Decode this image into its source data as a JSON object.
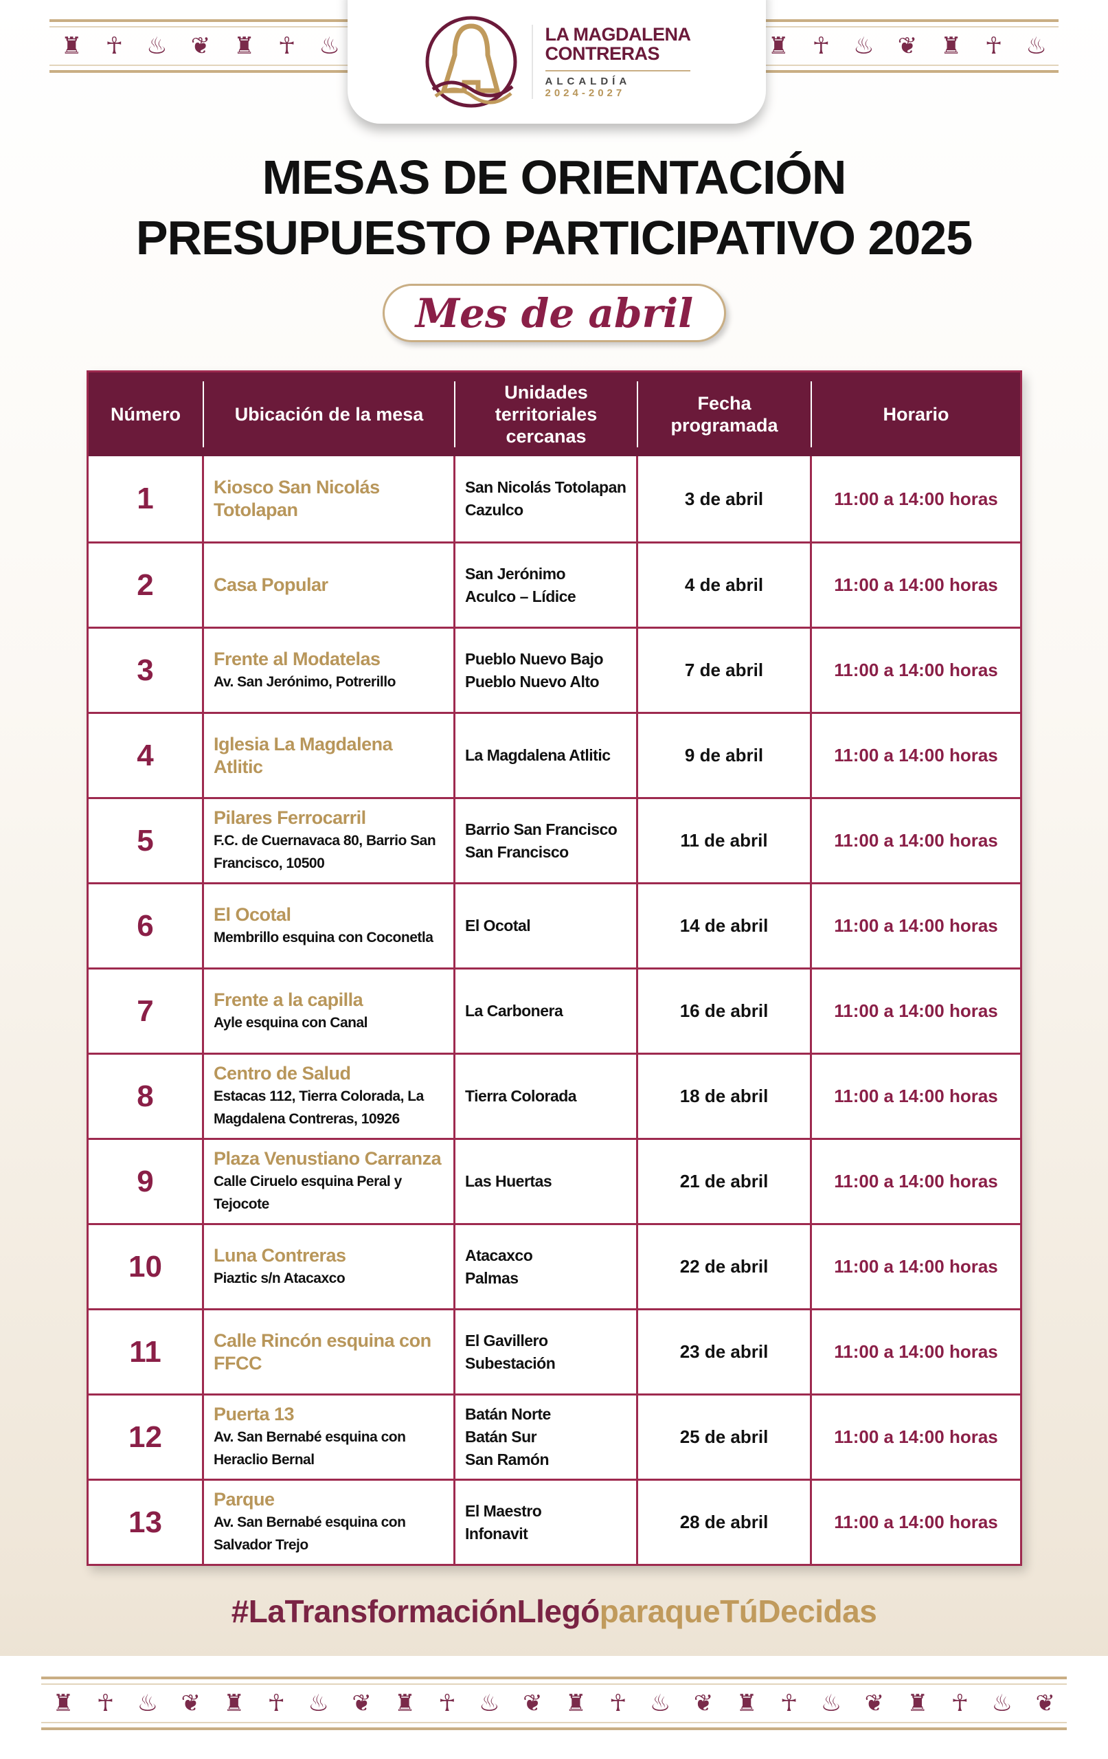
{
  "header": {
    "logo_line1": "LA MAGDALENA",
    "logo_line2": "CONTRERAS",
    "logo_sub": "ALCALDÍA",
    "logo_years": "2024-2027"
  },
  "title": {
    "line1": "MESAS DE ORIENTACIÓN",
    "line2": "PRESUPUESTO PARTICIPATIVO 2025"
  },
  "month_label": "Mes de abril",
  "colors": {
    "maroon": "#6b1a3a",
    "border": "#9e2a4f",
    "gold": "#b8965a"
  },
  "table": {
    "columns": [
      "Número",
      "Ubicación de la mesa",
      "Unidades territoriales cercanas",
      "Fecha programada",
      "Horario"
    ],
    "rows": [
      {
        "num": "1",
        "name": "Kiosco San Nicolás Totolapan",
        "addr": "",
        "units": "San Nicolás Totolapan\nCazulco",
        "date": "3 de abril",
        "hours": "11:00 a 14:00 horas"
      },
      {
        "num": "2",
        "name": "Casa Popular",
        "addr": "",
        "units": "San Jerónimo\nAculco – Lídice",
        "date": "4 de abril",
        "hours": "11:00 a 14:00 horas"
      },
      {
        "num": "3",
        "name": "Frente al Modatelas",
        "addr": "Av. San Jerónimo, Potrerillo",
        "units": "Pueblo Nuevo Bajo\nPueblo Nuevo Alto",
        "date": "7 de abril",
        "hours": "11:00 a 14:00 horas"
      },
      {
        "num": "4",
        "name": "Iglesia La Magdalena Atlitic",
        "addr": "",
        "units": "La Magdalena Atlitic",
        "date": "9 de abril",
        "hours": "11:00 a 14:00 horas"
      },
      {
        "num": "5",
        "name": "Pilares Ferrocarril",
        "addr": "F.C. de Cuernavaca 80, Barrio San Francisco, 10500",
        "units": "Barrio San Francisco\nSan Francisco",
        "date": "11 de abril",
        "hours": "11:00 a 14:00 horas"
      },
      {
        "num": "6",
        "name": "El Ocotal",
        "addr": "Membrillo esquina con Coconetla",
        "units": "El Ocotal",
        "date": "14 de abril",
        "hours": "11:00 a 14:00 horas"
      },
      {
        "num": "7",
        "name": "Frente a la capilla",
        "addr": "Ayle esquina con Canal",
        "units": "La Carbonera",
        "date": "16 de abril",
        "hours": "11:00 a 14:00 horas"
      },
      {
        "num": "8",
        "name": "Centro de Salud",
        "addr": "Estacas 112, Tierra Colorada, La Magdalena Contreras, 10926",
        "units": "Tierra Colorada",
        "date": "18 de abril",
        "hours": "11:00 a 14:00 horas"
      },
      {
        "num": "9",
        "name": "Plaza Venustiano Carranza",
        "addr": "Calle Ciruelo esquina Peral y Tejocote",
        "units": "Las Huertas",
        "date": "21 de abril",
        "hours": "11:00 a 14:00 horas"
      },
      {
        "num": "10",
        "name": "Luna Contreras",
        "addr": "Piaztic s/n Atacaxco",
        "units": "Atacaxco\nPalmas",
        "date": "22 de abril",
        "hours": "11:00 a 14:00 horas"
      },
      {
        "num": "11",
        "name": "Calle Rincón esquina con FFCC",
        "addr": "",
        "units": "El Gavillero\nSubestación",
        "date": "23 de abril",
        "hours": "11:00 a 14:00 horas"
      },
      {
        "num": "12",
        "name": "Puerta 13",
        "addr": "Av. San Bernabé esquina con Heraclio Bernal",
        "units": "Batán Norte\nBatán Sur\nSan Ramón",
        "date": "25 de abril",
        "hours": "11:00 a 14:00 horas"
      },
      {
        "num": "13",
        "name": "Parque",
        "addr": "Av. San Bernabé esquina con Salvador Trejo",
        "units": "El Maestro\nInfonavit",
        "date": "28 de abril",
        "hours": "11:00 a 14:00 horas"
      }
    ]
  },
  "hashtag": {
    "part1": "#LaTransformaciónLlegó",
    "part2": "paraqueTúDecidas"
  }
}
